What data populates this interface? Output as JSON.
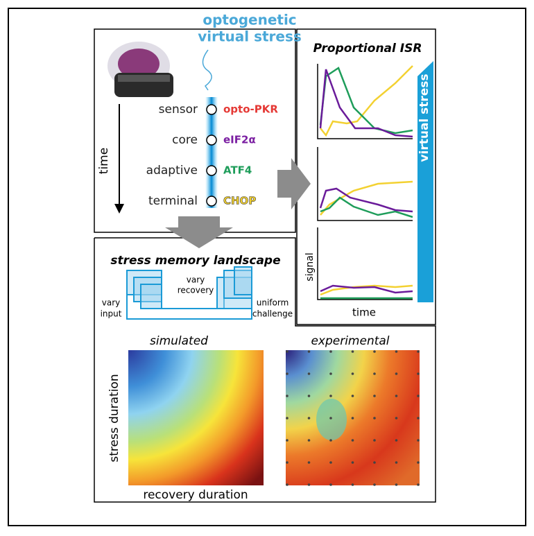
{
  "header": {
    "line1": "optogenetic",
    "line2": "virtual stress"
  },
  "pathway": {
    "time_label": "time",
    "nodes": [
      {
        "stage": "sensor",
        "protein": "opto-PKR"
      },
      {
        "stage": "core",
        "protein": "eIF2α"
      },
      {
        "stage": "adaptive",
        "protein": "ATF4"
      },
      {
        "stage": "terminal",
        "protein": "CHOP"
      }
    ]
  },
  "isr": {
    "title": "Proportional ISR",
    "gradient_label": "virtual stress",
    "y_label": "signal",
    "x_label": "time"
  },
  "landscape": {
    "title": "stress memory landscape",
    "recovery_line1": "vary",
    "recovery_line2": "recovery",
    "input_line1": "vary",
    "input_line2": "input",
    "challenge_line1": "uniform",
    "challenge_line2": "challenge",
    "simulated": "simulated",
    "experimental": "experimental",
    "y_label": "stress duration",
    "x_label": "recovery duration"
  }
}
